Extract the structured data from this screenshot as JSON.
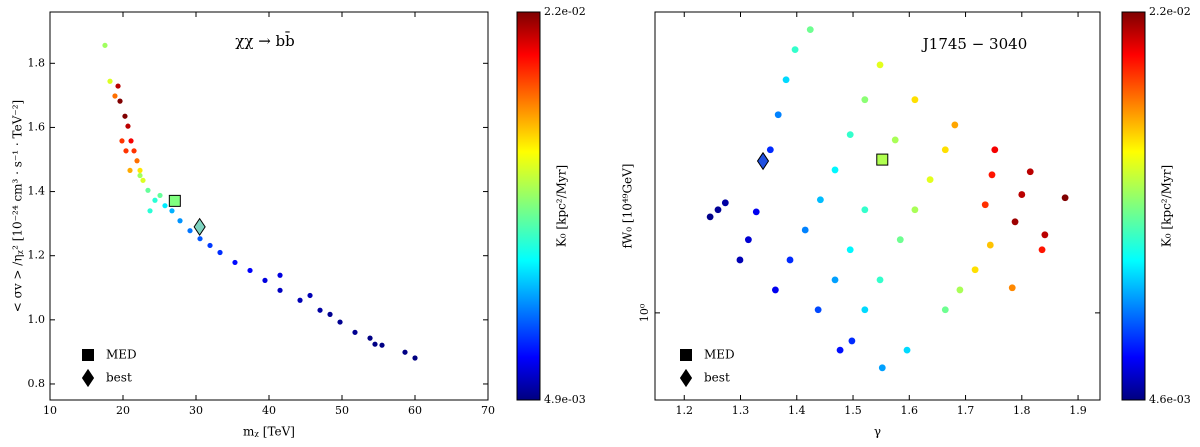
{
  "chart_data": [
    {
      "type": "scatter",
      "colormap": "jet",
      "annotation": "χχ → bb̄",
      "xlabel": "mᵪ [TeV]",
      "ylabel": "< σv > /ηᵪ² [10⁻²⁴ cm³ · s⁻¹ · TeV⁻²]",
      "clabel": "K₀ [kpc²/Myr]",
      "xlim": [
        10,
        70
      ],
      "xticks": [
        10,
        20,
        30,
        40,
        50,
        60,
        70
      ],
      "ylim": [
        0.75,
        1.96
      ],
      "yticks": [
        0.8,
        {
          "value": 1,
          "label": "1.0"
        },
        1.2,
        1.4,
        1.6,
        1.8
      ],
      "clim": [
        0.0049,
        0.022
      ],
      "cticks": [
        {
          "value": 0.022,
          "label": "2.2e-02"
        },
        {
          "value": 0.0049,
          "label": "4.9e-03"
        }
      ],
      "x": [
        17.53,
        18.22,
        18.9,
        19.32,
        19.59,
        20.27,
        20.68,
        21.1,
        21.51,
        21.92,
        22.33,
        22.74,
        23.42,
        24.38,
        25.07,
        25.75,
        26.71,
        27.81,
        29.18,
        30.55,
        31.92,
        33.29,
        35.34,
        37.4,
        39.45,
        41.51,
        44.25,
        46.99,
        49.73,
        51.78,
        53.84,
        55.48,
        58.63,
        60.0,
        20.96,
        20.41,
        19.86,
        23.7,
        22.33,
        41.51,
        45.62,
        48.36,
        54.52
      ],
      "values": [
        1.856,
        1.744,
        1.698,
        1.729,
        1.682,
        1.635,
        1.604,
        1.558,
        1.527,
        1.496,
        1.466,
        1.435,
        1.404,
        1.373,
        1.388,
        1.356,
        1.34,
        1.309,
        1.278,
        1.253,
        1.232,
        1.21,
        1.179,
        1.154,
        1.123,
        1.092,
        1.061,
        1.03,
        0.993,
        0.961,
        0.943,
        0.921,
        0.899,
        0.881,
        1.466,
        1.527,
        1.558,
        1.34,
        1.45,
        1.139,
        1.076,
        1.017,
        0.924
      ],
      "c": [
        0.014,
        0.015,
        0.018,
        0.021,
        0.022,
        0.022,
        0.021,
        0.02,
        0.019,
        0.018,
        0.016,
        0.015,
        0.013,
        0.012,
        0.013,
        0.011,
        0.01,
        0.0095,
        0.009,
        0.0085,
        0.008,
        0.0078,
        0.0072,
        0.007,
        0.0065,
        0.006,
        0.0058,
        0.0055,
        0.0052,
        0.0052,
        0.005,
        0.005,
        0.005,
        0.0049,
        0.017,
        0.019,
        0.019,
        0.012,
        0.014,
        0.0065,
        0.0058,
        0.0052,
        0.005
      ],
      "markers": [
        {
          "name": "MED",
          "shape": "square",
          "x": 27.1,
          "value": 1.371,
          "color": "#80ff80"
        },
        {
          "name": "best",
          "shape": "diamond",
          "x": 30.5,
          "value": 1.29,
          "color": "#7fd4c0"
        }
      ]
    },
    {
      "type": "scatter",
      "colormap": "jet",
      "ylog": true,
      "annotation": "J1745 − 3040",
      "xlabel": "γ",
      "ylabel": "fW₀ [10⁴⁹GeV]",
      "clabel": "K₀ [kpc²/Myr]",
      "xlim": [
        1.148,
        1.939
      ],
      "xticks": [
        1.2,
        1.3,
        1.4,
        1.5,
        1.6,
        1.7,
        1.8,
        1.9
      ],
      "ylim": [
        0.716,
        3.17
      ],
      "yticks": [
        {
          "value": 1,
          "label": "10⁰"
        }
      ],
      "clim": [
        0.0046,
        0.022
      ],
      "cticks": [
        {
          "value": 0.022,
          "label": "2.2e-02"
        },
        {
          "value": 0.0046,
          "label": "4.6e-03"
        }
      ],
      "x": [
        1.246,
        1.26,
        1.273,
        1.299,
        1.314,
        1.328,
        1.353,
        1.367,
        1.381,
        1.397,
        1.424,
        1.362,
        1.388,
        1.415,
        1.442,
        1.468,
        1.495,
        1.521,
        1.548,
        1.438,
        1.468,
        1.495,
        1.521,
        1.575,
        1.61,
        1.521,
        1.548,
        1.584,
        1.61,
        1.637,
        1.664,
        1.681,
        1.477,
        1.498,
        1.552,
        1.596,
        1.664,
        1.69,
        1.717,
        1.744,
        1.735,
        1.747,
        1.752,
        1.8,
        1.815,
        1.788,
        1.841,
        1.877,
        1.783,
        1.836
      ],
      "values": [
        1.445,
        1.485,
        1.525,
        1.225,
        1.324,
        1.473,
        1.869,
        2.138,
        2.445,
        2.744,
        2.963,
        1.092,
        1.225,
        1.374,
        1.543,
        1.73,
        1.981,
        2.265,
        2.588,
        1.012,
        1.135,
        1.274,
        1.485,
        1.941,
        2.265,
        1.012,
        1.135,
        1.324,
        1.485,
        1.667,
        1.869,
        2.056,
        0.867,
        0.898,
        0.81,
        0.867,
        1.012,
        1.092,
        1.18,
        1.297,
        1.514,
        1.698,
        1.869,
        1.574,
        1.718,
        1.418,
        1.349,
        1.555,
        1.101,
        1.274
      ],
      "c": [
        0.0048,
        0.005,
        0.0052,
        0.0055,
        0.006,
        0.0065,
        0.0075,
        0.009,
        0.0105,
        0.012,
        0.013,
        0.0065,
        0.0075,
        0.009,
        0.01,
        0.011,
        0.012,
        0.0135,
        0.015,
        0.008,
        0.0095,
        0.011,
        0.012,
        0.014,
        0.016,
        0.0105,
        0.012,
        0.013,
        0.014,
        0.015,
        0.016,
        0.017,
        0.007,
        0.0075,
        0.0095,
        0.0105,
        0.013,
        0.014,
        0.016,
        0.0165,
        0.019,
        0.0195,
        0.02,
        0.021,
        0.021,
        0.0215,
        0.021,
        0.022,
        0.0175,
        0.0195
      ],
      "markers": [
        {
          "name": "MED",
          "shape": "square",
          "x": 1.552,
          "value": 1.8,
          "color": "#b0ff50"
        },
        {
          "name": "best",
          "shape": "diamond",
          "x": 1.34,
          "value": 1.79,
          "color": "#2050e0"
        }
      ]
    }
  ]
}
